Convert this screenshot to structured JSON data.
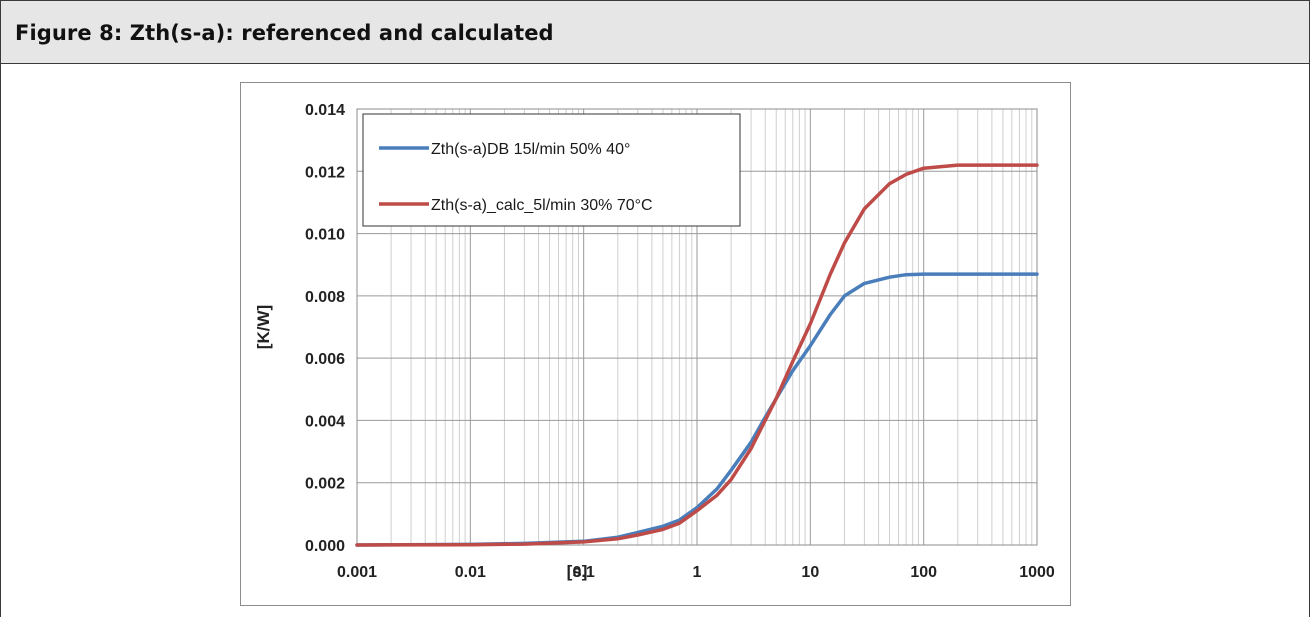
{
  "figure": {
    "caption": "Figure 8: Zth(s-a): referenced and calculated"
  },
  "chart_data": {
    "type": "line",
    "xscale": "log",
    "xlim": [
      0.001,
      1000
    ],
    "ylim": [
      0,
      0.014
    ],
    "xlabel": "[s]",
    "ylabel": "[K/W]",
    "x_ticks": [
      "0.001",
      "0.01",
      "0.1",
      "1",
      "10",
      "100",
      "1000"
    ],
    "y_ticks": [
      "0.000",
      "0.002",
      "0.004",
      "0.006",
      "0.008",
      "0.010",
      "0.012",
      "0.014"
    ],
    "grid": true,
    "legend_position": "top-left",
    "series": [
      {
        "name": "Zth(s-a)DB 15l/min 50% 40°",
        "color": "#4a7ebb",
        "x": [
          0.001,
          0.01,
          0.03,
          0.1,
          0.2,
          0.3,
          0.5,
          0.7,
          1,
          1.5,
          2,
          3,
          4,
          5,
          7,
          10,
          15,
          20,
          30,
          50,
          70,
          100,
          200,
          500,
          1000
        ],
        "y": [
          0.0,
          2e-05,
          5e-05,
          0.00012,
          0.00025,
          0.0004,
          0.0006,
          0.0008,
          0.0012,
          0.0018,
          0.0024,
          0.0033,
          0.0041,
          0.0047,
          0.0056,
          0.0064,
          0.0074,
          0.008,
          0.0084,
          0.0086,
          0.00868,
          0.0087,
          0.0087,
          0.0087,
          0.0087
        ]
      },
      {
        "name": "Zth(s-a)_calc_5l/min 30% 70°C",
        "color": "#be4b48",
        "x": [
          0.001,
          0.01,
          0.03,
          0.1,
          0.2,
          0.3,
          0.5,
          0.7,
          1,
          1.5,
          2,
          3,
          4,
          5,
          7,
          10,
          15,
          20,
          30,
          50,
          70,
          100,
          200,
          500,
          1000
        ],
        "y": [
          0.0,
          1e-05,
          3e-05,
          0.0001,
          0.0002,
          0.00032,
          0.0005,
          0.0007,
          0.0011,
          0.0016,
          0.0021,
          0.0031,
          0.004,
          0.0047,
          0.0059,
          0.0071,
          0.0087,
          0.0097,
          0.0108,
          0.0116,
          0.0119,
          0.0121,
          0.0122,
          0.0122,
          0.0122
        ]
      }
    ]
  }
}
